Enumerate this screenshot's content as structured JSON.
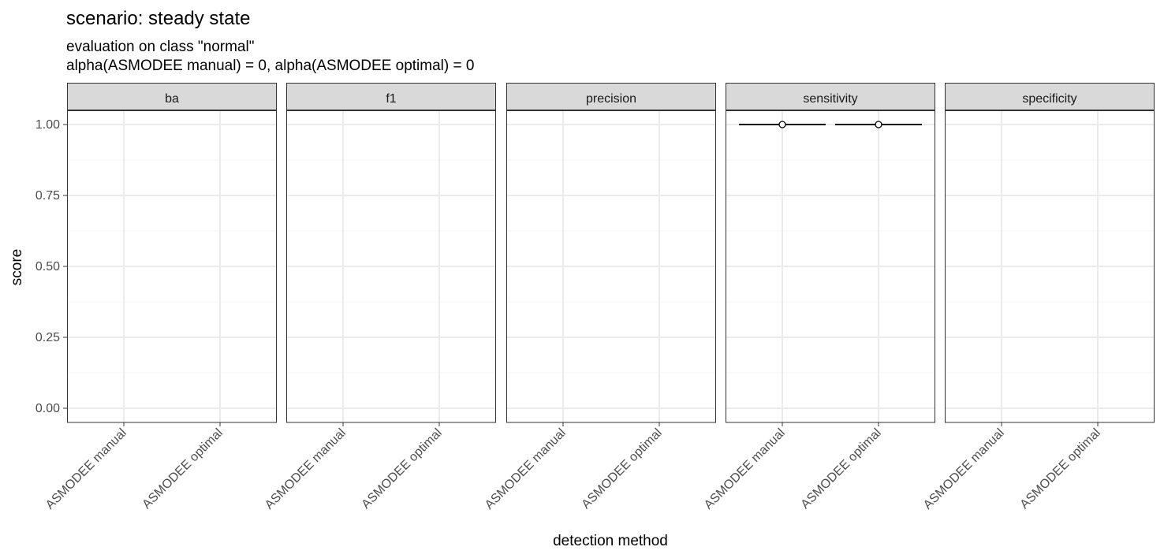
{
  "chart_data": {
    "type": "scatter",
    "title": "scenario:  steady state",
    "subtitle_lines": [
      "evaluation on class \"normal\"",
      "alpha(ASMODEE manual) = 0, alpha(ASMODEE optimal) = 0"
    ],
    "xlabel": "detection method",
    "ylabel": "score",
    "ylim": [
      -0.05,
      1.05
    ],
    "y_ticks": [
      0,
      0.25,
      0.5,
      0.75,
      1
    ],
    "y_tick_labels": [
      "0.00",
      "0.25",
      "0.50",
      "0.75",
      "1.00"
    ],
    "categories": [
      "ASMODEE manual",
      "ASMODEE optimal"
    ],
    "grid": true,
    "facets": [
      {
        "name": "ba",
        "points": []
      },
      {
        "name": "f1",
        "points": []
      },
      {
        "name": "precision",
        "points": []
      },
      {
        "name": "sensitivity",
        "points": [
          {
            "category": "ASMODEE manual",
            "value": 1.0,
            "lower": 1.0,
            "upper": 1.0
          },
          {
            "category": "ASMODEE optimal",
            "value": 1.0,
            "lower": 1.0,
            "upper": 1.0
          }
        ]
      },
      {
        "name": "specificity",
        "points": []
      }
    ],
    "colors": {
      "strip_fill": "#d9d9d9",
      "panel_border": "#333333",
      "grid_major": "#ebebeb",
      "grid_minor": "#f4f4f4",
      "point_fill": "#ffffff",
      "point_stroke": "#000000",
      "text": "#000000",
      "tick_text": "#4d4d4d"
    }
  }
}
